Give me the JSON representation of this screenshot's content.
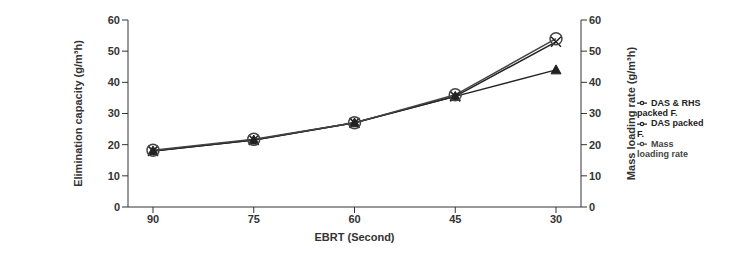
{
  "chart_data": {
    "type": "line",
    "x_label": "EBRT (Second)",
    "y_label": "Elimination capacity (g/m³h)",
    "y2_label": "Mass loading rate (g/m³h)",
    "categories": [
      "90",
      "75",
      "60",
      "45",
      "30"
    ],
    "ylim": [
      0,
      60
    ],
    "yticks": [
      0,
      10,
      20,
      30,
      40,
      50,
      60
    ],
    "y2lim": [
      0,
      60
    ],
    "y2ticks": [
      0,
      10,
      20,
      30,
      40,
      50,
      60
    ],
    "grid": false,
    "legend": "right",
    "series": [
      {
        "name": "DAS packed F.",
        "color": "#222222",
        "marker": "triangle",
        "values": [
          18,
          21.5,
          27,
          35.5,
          44
        ]
      },
      {
        "name": "DAS & RHS packed F.",
        "color": "#222222",
        "marker": "x",
        "values": [
          18,
          21.5,
          27,
          35.5,
          53
        ]
      },
      {
        "name": "Mass loading rate",
        "color": "#444444",
        "marker": "circle",
        "axis": "y2",
        "values": [
          18.2,
          21.7,
          27,
          36,
          54
        ]
      }
    ]
  }
}
